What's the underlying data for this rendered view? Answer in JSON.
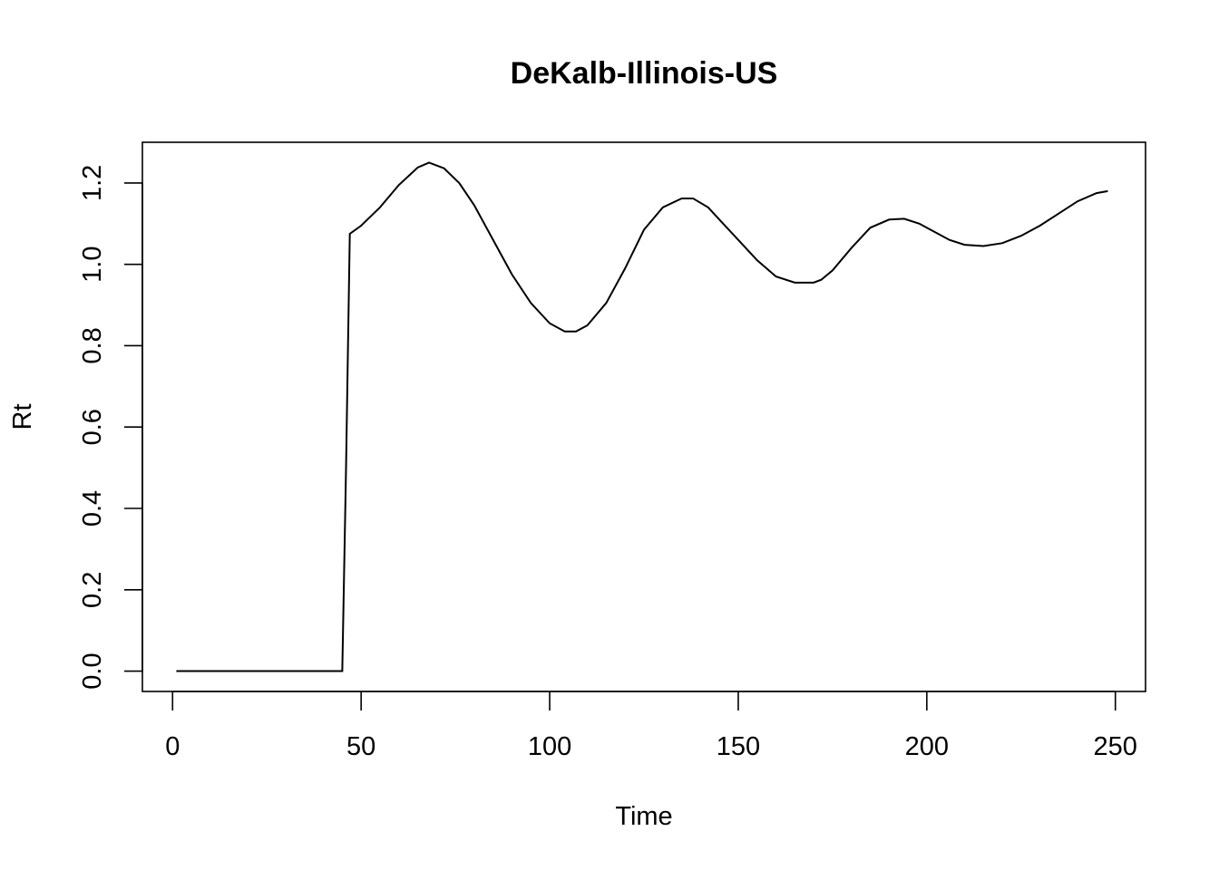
{
  "chart_data": {
    "type": "line",
    "title": "DeKalb-Illinois-US",
    "xlabel": "Time",
    "ylabel": "Rt",
    "xlim": [
      -8,
      258
    ],
    "ylim": [
      -0.05,
      1.3
    ],
    "x_ticks": [
      0,
      50,
      100,
      150,
      200,
      250
    ],
    "y_ticks": [
      0.0,
      0.2,
      0.4,
      0.6,
      0.8,
      1.0,
      1.2
    ],
    "x_tick_labels": [
      "0",
      "50",
      "100",
      "150",
      "200",
      "250"
    ],
    "y_tick_labels": [
      "0.0",
      "0.2",
      "0.4",
      "0.6",
      "0.8",
      "1.0",
      "1.2"
    ],
    "grid": false,
    "legend": "none",
    "color": "#000000",
    "series": [
      {
        "x": [
          1,
          10,
          20,
          30,
          40,
          45,
          46,
          47,
          50,
          55,
          60,
          65,
          68,
          72,
          76,
          80,
          85,
          90,
          95,
          100,
          104,
          107,
          110,
          115,
          120,
          125,
          130,
          135,
          138,
          142,
          146,
          150,
          155,
          160,
          165,
          170,
          172,
          175,
          180,
          185,
          190,
          194,
          198,
          202,
          206,
          210,
          215,
          220,
          225,
          230,
          235,
          240,
          245,
          248
        ],
        "y": [
          0.0,
          0.0,
          0.0,
          0.0,
          0.0,
          0.0,
          0.5,
          1.075,
          1.095,
          1.14,
          1.195,
          1.238,
          1.25,
          1.236,
          1.2,
          1.145,
          1.06,
          0.975,
          0.905,
          0.855,
          0.835,
          0.835,
          0.85,
          0.905,
          0.99,
          1.085,
          1.14,
          1.162,
          1.162,
          1.14,
          1.1,
          1.06,
          1.01,
          0.97,
          0.955,
          0.955,
          0.962,
          0.985,
          1.04,
          1.09,
          1.11,
          1.112,
          1.1,
          1.08,
          1.06,
          1.048,
          1.045,
          1.052,
          1.07,
          1.095,
          1.125,
          1.155,
          1.175,
          1.18
        ]
      }
    ]
  }
}
